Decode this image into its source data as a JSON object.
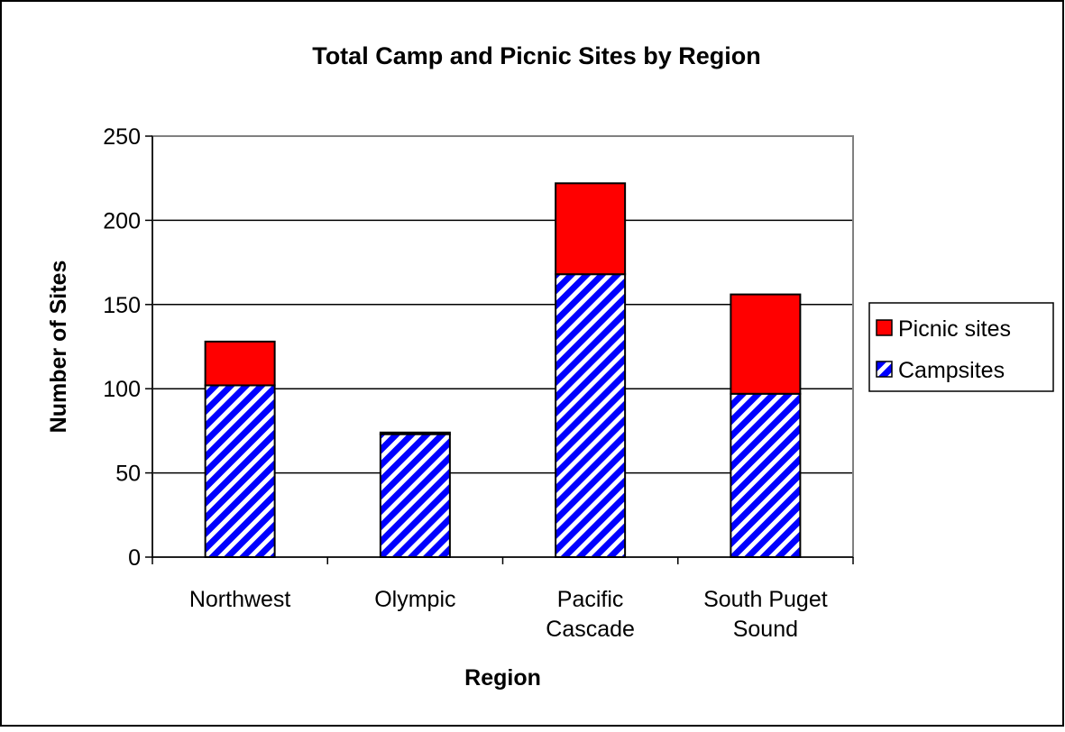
{
  "chart_data": {
    "type": "bar",
    "stacked": true,
    "title": "Total Camp and Picnic Sites by Region",
    "xlabel": "Region",
    "ylabel": "Number of Sites",
    "categories": [
      [
        "Northwest"
      ],
      [
        "Olympic"
      ],
      [
        "Pacific",
        "Cascade"
      ],
      [
        "South Puget",
        "Sound"
      ]
    ],
    "series": [
      {
        "name": "Campsites",
        "values": [
          102,
          73,
          168,
          97
        ],
        "color": "#0000ff",
        "pattern": "diagonal-stripes"
      },
      {
        "name": "Picnic sites",
        "values": [
          26,
          1,
          54,
          59
        ],
        "color": "#ff0000"
      }
    ],
    "ylim": [
      0,
      250
    ],
    "yticks": [
      0,
      50,
      100,
      150,
      200,
      250
    ],
    "grid": true,
    "legend_position": "right",
    "legend_order": [
      "Picnic sites",
      "Campsites"
    ]
  }
}
